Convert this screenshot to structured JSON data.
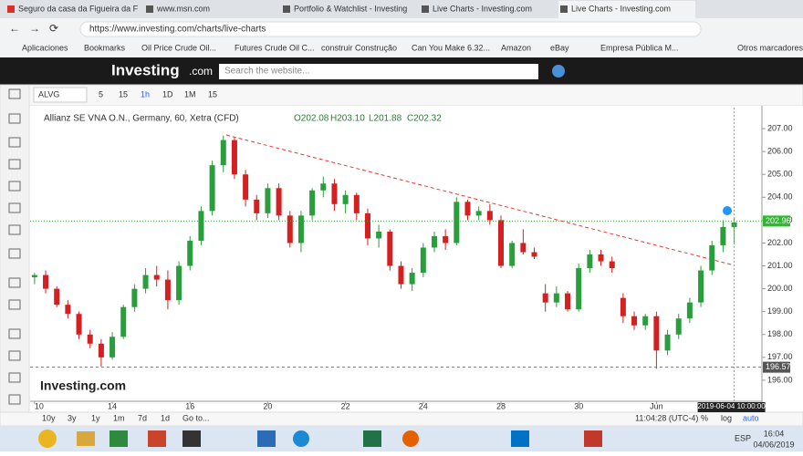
{
  "browser": {
    "tabs": [
      "Seguro da casa da Figueira da F",
      "www.msn.com",
      "Portfolio & Watchlist - Investing",
      "Live Charts - Investing.com",
      "Live Charts - Investing.com"
    ],
    "url": "https://www.investing.com/charts/live-charts",
    "bookmarks": [
      "Aplicaciones",
      "Bookmarks",
      "Oil Price Crude Oil...",
      "Futures Crude Oil C...",
      "construir Construção",
      "Can You Make 6.32...",
      "Amazon",
      "eBay",
      "Empresa Pública M..."
    ],
    "other_bookmarks": "Otros marcadores"
  },
  "site_header": {
    "logo": "Investing",
    "logo_suffix": ".com",
    "search_placeholder": "Search the website..."
  },
  "toolbar": {
    "symbol": "ALVG",
    "intervals": [
      "5",
      "15",
      "1h",
      "1D",
      "1M",
      "15"
    ]
  },
  "chart_data": {
    "type": "candlestick",
    "title": "Allianz SE VNA O.N., Germany, 60, Xetra (CFD)",
    "ohlc_labels": [
      "O202.08",
      "H203.10",
      "L201.88",
      "C202.32"
    ],
    "watermark": "Investing.com",
    "open": [
      200.5,
      200.6,
      200.0,
      199.3,
      198.9,
      198.0,
      197.6,
      197.0,
      197.9,
      199.2,
      200.0,
      200.6,
      200.4,
      199.5,
      201.0,
      202.1,
      203.4,
      205.4,
      206.5,
      205.0,
      203.9,
      203.3,
      204.4,
      203.2,
      202.0,
      203.2,
      204.3,
      204.6,
      203.7,
      204.1,
      203.3,
      202.2,
      202.5,
      201.0,
      200.2,
      200.7,
      201.8,
      202.3,
      202.0,
      203.8,
      203.2,
      203.4,
      203.0,
      201.0,
      202.0,
      201.6,
      199.8,
      199.4,
      199.8,
      199.1,
      200.9,
      201.5,
      201.2,
      199.6,
      198.8,
      198.4,
      198.8,
      197.3,
      198.0,
      198.7,
      199.4,
      200.8,
      201.9,
      202.7
    ],
    "high": [
      200.7,
      200.8,
      200.1,
      199.5,
      199.0,
      198.2,
      197.8,
      198.1,
      199.3,
      200.2,
      200.9,
      201.0,
      200.8,
      201.2,
      202.3,
      203.6,
      205.6,
      206.7,
      206.6,
      205.2,
      204.1,
      204.6,
      204.6,
      203.4,
      203.4,
      204.4,
      204.9,
      204.8,
      204.3,
      204.2,
      203.5,
      202.8,
      202.6,
      201.2,
      200.9,
      202.0,
      202.5,
      202.6,
      204.0,
      203.9,
      203.6,
      203.7,
      203.2,
      202.1,
      202.6,
      201.8,
      200.2,
      200.1,
      199.9,
      201.1,
      201.7,
      201.7,
      201.4,
      199.8,
      199.0,
      198.9,
      199.0,
      198.2,
      198.9,
      199.6,
      201.0,
      202.1,
      203.0,
      203.1
    ],
    "low": [
      200.2,
      199.8,
      199.2,
      198.7,
      197.8,
      197.4,
      196.6,
      196.9,
      197.8,
      199.0,
      199.8,
      200.1,
      199.1,
      199.3,
      200.8,
      201.9,
      203.2,
      205.1,
      204.8,
      203.6,
      203.0,
      203.1,
      203.0,
      201.8,
      201.6,
      203.0,
      204.0,
      203.4,
      203.3,
      203.0,
      201.9,
      201.8,
      200.8,
      200.0,
      199.9,
      200.5,
      201.6,
      201.7,
      201.9,
      203.0,
      203.0,
      202.8,
      200.9,
      200.9,
      201.5,
      201.3,
      199.0,
      199.2,
      199.0,
      199.0,
      200.7,
      201.0,
      200.7,
      198.5,
      198.2,
      198.2,
      196.5,
      197.1,
      197.8,
      198.5,
      199.2,
      200.6,
      201.6,
      202.0
    ],
    "close": [
      200.6,
      200.0,
      199.3,
      198.9,
      198.0,
      197.6,
      197.0,
      197.9,
      199.2,
      200.0,
      200.6,
      200.4,
      199.5,
      201.0,
      202.1,
      203.4,
      205.4,
      206.5,
      205.0,
      203.9,
      203.3,
      204.4,
      203.2,
      202.0,
      203.2,
      204.3,
      204.6,
      203.7,
      204.1,
      203.3,
      202.2,
      202.5,
      201.0,
      200.2,
      200.7,
      201.8,
      202.3,
      202.0,
      203.8,
      203.2,
      203.4,
      203.0,
      201.0,
      202.0,
      201.6,
      201.4,
      199.4,
      199.8,
      199.1,
      200.9,
      201.5,
      201.2,
      200.9,
      198.8,
      198.4,
      198.8,
      197.3,
      198.0,
      198.7,
      199.4,
      200.8,
      201.9,
      202.7,
      202.9
    ],
    "up_color": "#2a9d3c",
    "down_color": "#d42020",
    "xlim": [
      -0.4,
      65.5
    ],
    "xticks": [
      {
        "value": 0,
        "label": "10"
      },
      {
        "value": 7,
        "label": "14"
      },
      {
        "value": 14,
        "label": "16"
      },
      {
        "value": 21,
        "label": "20"
      },
      {
        "value": 28,
        "label": "22"
      },
      {
        "value": 35,
        "label": "24"
      },
      {
        "value": 42,
        "label": "28"
      },
      {
        "value": 49,
        "label": "30"
      },
      {
        "value": 56,
        "label": "Jun"
      }
    ],
    "ylim": [
      195.08,
      207.92
    ],
    "yticks": [
      {
        "value": 196,
        "label": "196.00"
      },
      {
        "value": 197,
        "label": "197.00"
      },
      {
        "value": 198,
        "label": "198.00"
      },
      {
        "value": 199,
        "label": "199.00"
      },
      {
        "value": 200,
        "label": "200.00"
      },
      {
        "value": 201,
        "label": "201.00"
      },
      {
        "value": 202,
        "label": "202.00"
      },
      {
        "value": 203,
        "label": "203.00"
      },
      {
        "value": 204,
        "label": "204.00"
      },
      {
        "value": 205,
        "label": "205.00"
      },
      {
        "value": 206,
        "label": "206.00"
      },
      {
        "value": 207,
        "label": "207.00"
      }
    ],
    "last_price": 202.96,
    "cursor_price": 196.57,
    "cursor_time": "2019-06-04 10:00:00"
  },
  "bottom_bar": {
    "ranges": [
      "10y",
      "3y",
      "1y",
      "1m",
      "7d",
      "1d"
    ],
    "goto": "Go to...",
    "clock": "11:04:28 (UTC-4)",
    "options": [
      "%",
      "log",
      "auto"
    ]
  },
  "taskbar": {
    "language": "ESP",
    "time": "16:04",
    "date": "04/06/2019"
  }
}
